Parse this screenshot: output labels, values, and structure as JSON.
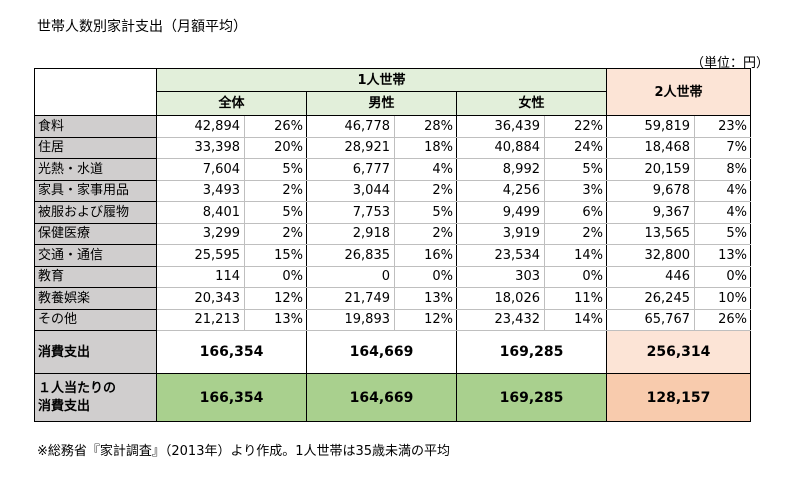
{
  "title": "世帯人数別家計支出（月額平均）",
  "unit": "（単位：円）",
  "header": {
    "single_household": "1人世帯",
    "all": "全体",
    "male": "男性",
    "female": "女性",
    "two_household": "2人世帯"
  },
  "rows": [
    {
      "label": "食料",
      "all": "42,894",
      "all_pct": "26%",
      "male": "46,778",
      "male_pct": "28%",
      "female": "36,439",
      "female_pct": "22%",
      "two": "59,819",
      "two_pct": "23%"
    },
    {
      "label": "住居",
      "all": "33,398",
      "all_pct": "20%",
      "male": "28,921",
      "male_pct": "18%",
      "female": "40,884",
      "female_pct": "24%",
      "two": "18,468",
      "two_pct": "7%"
    },
    {
      "label": "光熱・水道",
      "all": "7,604",
      "all_pct": "5%",
      "male": "6,777",
      "male_pct": "4%",
      "female": "8,992",
      "female_pct": "5%",
      "two": "20,159",
      "two_pct": "8%"
    },
    {
      "label": "家具・家事用品",
      "all": "3,493",
      "all_pct": "2%",
      "male": "3,044",
      "male_pct": "2%",
      "female": "4,256",
      "female_pct": "3%",
      "two": "9,678",
      "two_pct": "4%"
    },
    {
      "label": "被服および履物",
      "all": "8,401",
      "all_pct": "5%",
      "male": "7,753",
      "male_pct": "5%",
      "female": "9,499",
      "female_pct": "6%",
      "two": "9,367",
      "two_pct": "4%"
    },
    {
      "label": "保健医療",
      "all": "3,299",
      "all_pct": "2%",
      "male": "2,918",
      "male_pct": "2%",
      "female": "3,919",
      "female_pct": "2%",
      "two": "13,565",
      "two_pct": "5%"
    },
    {
      "label": "交通・通信",
      "all": "25,595",
      "all_pct": "15%",
      "male": "26,835",
      "male_pct": "16%",
      "female": "23,534",
      "female_pct": "14%",
      "two": "32,800",
      "two_pct": "13%"
    },
    {
      "label": "教育",
      "all": "114",
      "all_pct": "0%",
      "male": "0",
      "male_pct": "0%",
      "female": "303",
      "female_pct": "0%",
      "two": "446",
      "two_pct": "0%"
    },
    {
      "label": "教養娯楽",
      "all": "20,343",
      "all_pct": "12%",
      "male": "21,749",
      "male_pct": "13%",
      "female": "18,026",
      "female_pct": "11%",
      "two": "26,245",
      "two_pct": "10%"
    },
    {
      "label": "その他",
      "all": "21,213",
      "all_pct": "13%",
      "male": "19,893",
      "male_pct": "12%",
      "female": "23,432",
      "female_pct": "14%",
      "two": "65,767",
      "two_pct": "26%"
    }
  ],
  "totals": {
    "label": "消費支出",
    "all": "166,354",
    "male": "164,669",
    "female": "169,285",
    "two": "256,314"
  },
  "per_person": {
    "label_line1": "１人当たりの",
    "label_line2": "消費支出",
    "all": "166,354",
    "male": "164,669",
    "female": "169,285",
    "two": "128,157"
  },
  "note": "※総務省『家計調査』（2013年）より作成。1人世帯は35歳未満の平均"
}
